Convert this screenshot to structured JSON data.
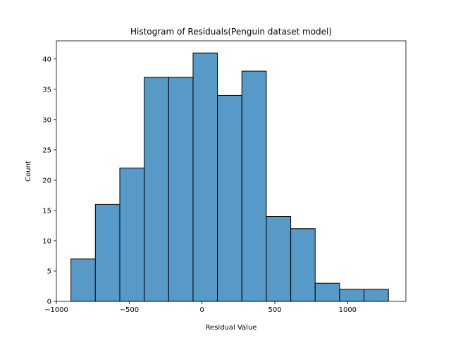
{
  "chart_data": {
    "type": "bar",
    "subtype": "histogram",
    "title": "Histogram of Residuals(Penguin dataset model)",
    "xlabel": "Residual Value",
    "ylabel": "Count",
    "xlim": [
      -1000,
      1400
    ],
    "ylim": [
      0,
      43
    ],
    "x_ticks": [
      -1000,
      -500,
      0,
      500,
      1000
    ],
    "x_tick_labels": [
      "−1000",
      "−500",
      "0",
      "500",
      "1000"
    ],
    "y_ticks": [
      0,
      5,
      10,
      15,
      20,
      25,
      30,
      35,
      40
    ],
    "y_tick_labels": [
      "0",
      "5",
      "10",
      "15",
      "20",
      "25",
      "30",
      "35",
      "40"
    ],
    "bin_edges": [
      -900,
      -732.3,
      -564.6,
      -396.9,
      -229.2,
      -61.5,
      106.2,
      273.9,
      441.6,
      609.3,
      777.0,
      944.7,
      1112.4,
      1280.1
    ],
    "values": [
      7,
      16,
      22,
      37,
      37,
      41,
      34,
      38,
      14,
      12,
      3,
      2,
      2
    ],
    "bar_color": "#5799c7",
    "edge_color": "#000000",
    "grid": false,
    "legend": "none"
  }
}
